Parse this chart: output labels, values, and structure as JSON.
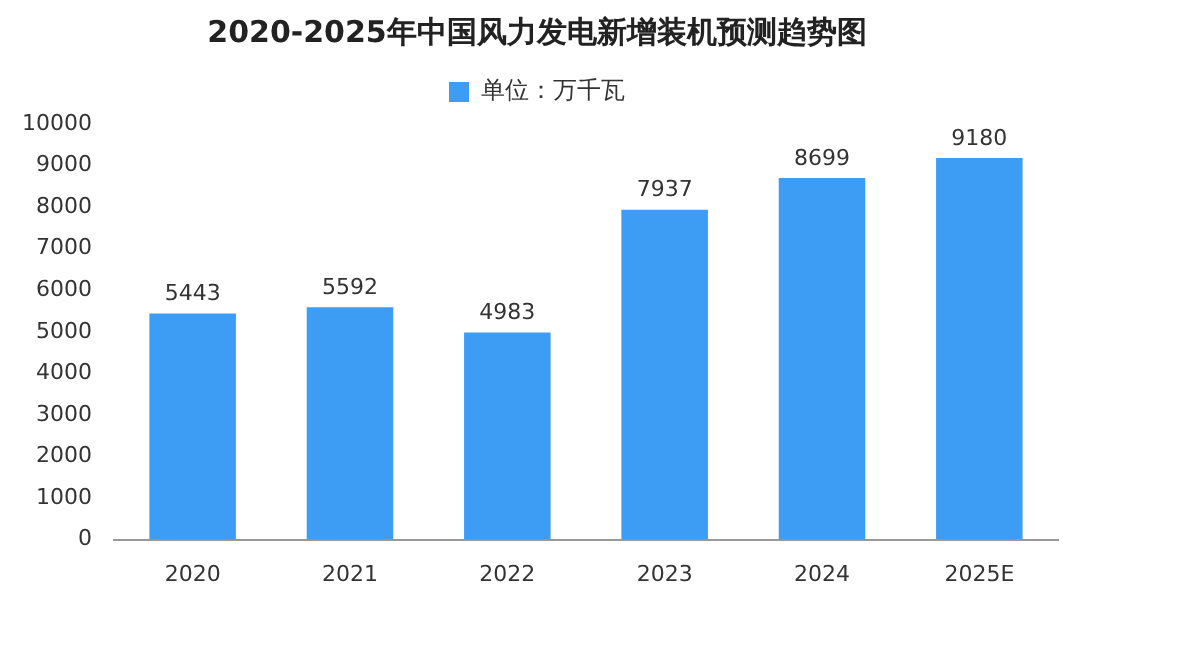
{
  "chart_data": {
    "type": "bar",
    "title": "2020-2025年中国风力发电新增装机预测趋势图",
    "categories": [
      "2020",
      "2021",
      "2022",
      "2023",
      "2024",
      "2025E"
    ],
    "series": [
      {
        "name": "单位：万千瓦",
        "color": "#3d9cf4",
        "values": [
          5443,
          5592,
          4983,
          7937,
          8699,
          9180
        ]
      }
    ],
    "ylim": [
      0,
      10000
    ],
    "yticks": [
      0,
      1000,
      2000,
      3000,
      4000,
      5000,
      6000,
      7000,
      8000,
      9000,
      10000
    ],
    "grid": false,
    "legend": "top",
    "data_labels": true
  }
}
